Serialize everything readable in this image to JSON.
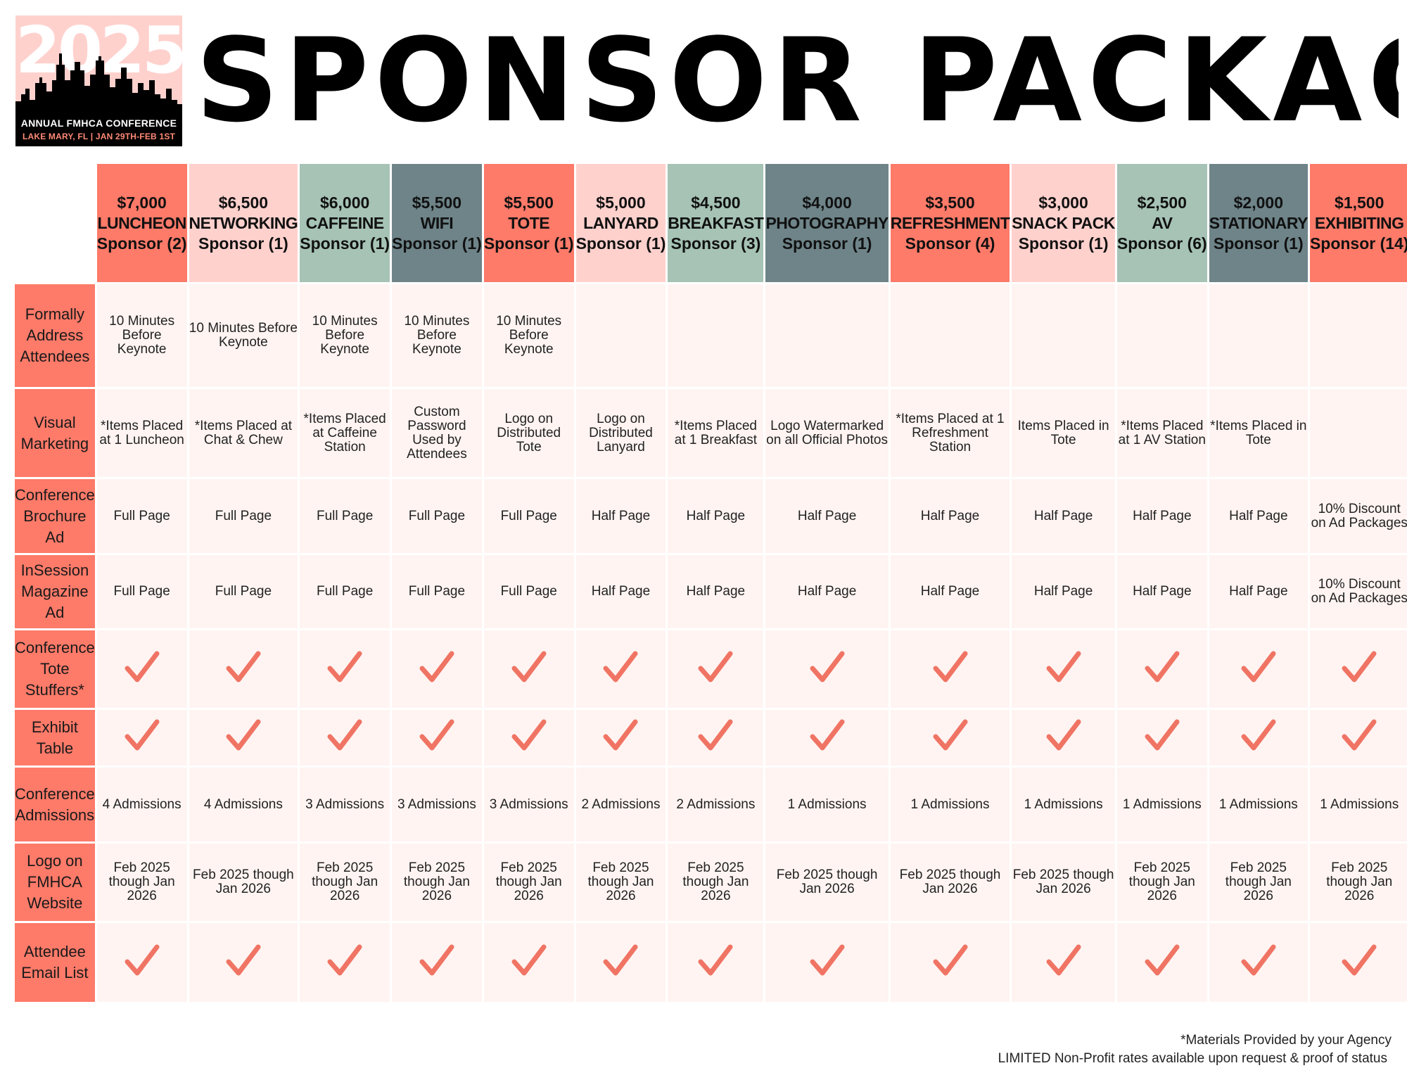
{
  "logo": {
    "year": "2025",
    "line1": "ANNUAL FMHCA CONFERENCE",
    "line2": "LAKE MARY, FL | JAN 29TH-FEB 1ST"
  },
  "title": "SPONSOR PACKAGES",
  "colors": {
    "coral": "#fe7a69",
    "pink": "#ffd1cd",
    "sage": "#a6c3b5",
    "slate": "#6e8489",
    "cell_bg": "#fff4f2",
    "check": "#f07464"
  },
  "packages": [
    {
      "price": "$7,000",
      "name": "LUNCHEON",
      "count": "Sponsor (2)",
      "color": "#fe7a69"
    },
    {
      "price": "$6,500",
      "name": "NETWORKING",
      "count": "Sponsor (1)",
      "color": "#ffd1cd"
    },
    {
      "price": "$6,000",
      "name": "CAFFEINE",
      "count": "Sponsor (1)",
      "color": "#a6c3b5"
    },
    {
      "price": "$5,500",
      "name": "WIFI",
      "count": "Sponsor (1)",
      "color": "#6e8489"
    },
    {
      "price": "$5,500",
      "name": "TOTE",
      "count": "Sponsor (1)",
      "color": "#fe7a69"
    },
    {
      "price": "$5,000",
      "name": "LANYARD",
      "count": "Sponsor (1)",
      "color": "#ffd1cd"
    },
    {
      "price": "$4,500",
      "name": "BREAKFAST",
      "count": "Sponsor (3)",
      "color": "#a6c3b5"
    },
    {
      "price": "$4,000",
      "name": "PHOTOGRAPHY",
      "count": "Sponsor (1)",
      "color": "#6e8489"
    },
    {
      "price": "$3,500",
      "name": "REFRESHMENT",
      "count": "Sponsor (4)",
      "color": "#fe7a69"
    },
    {
      "price": "$3,000",
      "name": "SNACK PACK",
      "count": "Sponsor (1)",
      "color": "#ffd1cd"
    },
    {
      "price": "$2,500",
      "name": "AV",
      "count": "Sponsor (6)",
      "color": "#a6c3b5"
    },
    {
      "price": "$2,000",
      "name": "STATIONARY",
      "count": "Sponsor (1)",
      "color": "#6e8489"
    },
    {
      "price": "$1,500",
      "name": "EXHIBITING",
      "count": "Sponsor (14)",
      "color": "#fe7a69"
    }
  ],
  "rows": [
    {
      "label": "Formally Address Attendees",
      "cells": [
        "10 Minutes Before Keynote",
        "10 Minutes Before Keynote",
        "10 Minutes Before Keynote",
        "10 Minutes Before Keynote",
        "10 Minutes Before Keynote",
        "",
        "",
        "",
        "",
        "",
        "",
        "",
        ""
      ]
    },
    {
      "label": "Visual Marketing",
      "cells": [
        "*Items Placed at 1 Luncheon",
        "*Items Placed at Chat & Chew",
        "*Items Placed at Caffeine Station",
        "Custom Password Used by Attendees",
        "Logo on Distributed Tote",
        "Logo on Distributed Lanyard",
        "*Items Placed at 1 Breakfast",
        "Logo Watermarked on all Official Photos",
        "*Items Placed at 1 Refreshment Station",
        "Items Placed in Tote",
        "*Items Placed at 1 AV Station",
        "*Items Placed in Tote",
        ""
      ]
    },
    {
      "label": "Conference Brochure Ad",
      "cells": [
        "Full Page",
        "Full Page",
        "Full Page",
        "Full Page",
        "Full Page",
        "Half Page",
        "Half Page",
        "Half Page",
        "Half Page",
        "Half Page",
        "Half Page",
        "Half Page",
        "10% Discount on Ad Packages"
      ]
    },
    {
      "label": "InSession Magazine Ad",
      "cells": [
        "Full Page",
        "Full Page",
        "Full Page",
        "Full Page",
        "Full Page",
        "Half Page",
        "Half Page",
        "Half Page",
        "Half Page",
        "Half Page",
        "Half Page",
        "Half Page",
        "10% Discount on Ad Packages"
      ]
    },
    {
      "label": "Conference Tote Stuffers*",
      "check": true
    },
    {
      "label": "Exhibit Table",
      "check": true
    },
    {
      "label": "Conference Admissions",
      "cells": [
        "4 Admissions",
        "4 Admissions",
        "3 Admissions",
        "3 Admissions",
        "3 Admissions",
        "2 Admissions",
        "2 Admissions",
        "1 Admissions",
        "1 Admissions",
        "1 Admissions",
        "1 Admissions",
        "1 Admissions",
        "1 Admissions"
      ]
    },
    {
      "label": "Logo on FMHCA Website",
      "cells": [
        "Feb 2025 though Jan 2026",
        "Feb 2025 though Jan 2026",
        "Feb 2025 though Jan 2026",
        "Feb 2025 though Jan 2026",
        "Feb 2025 though Jan 2026",
        "Feb 2025 though Jan 2026",
        "Feb 2025 though Jan 2026",
        "Feb 2025 though Jan 2026",
        "Feb 2025 though Jan 2026",
        "Feb 2025 though Jan 2026",
        "Feb 2025 though Jan 2026",
        "Feb 2025 though Jan 2026",
        "Feb 2025 though Jan 2026"
      ]
    },
    {
      "label": "Attendee Email List",
      "check": true
    }
  ],
  "footnotes": [
    "*Materials Provided by your Agency",
    "LIMITED Non-Profit rates available upon request & proof of status"
  ]
}
